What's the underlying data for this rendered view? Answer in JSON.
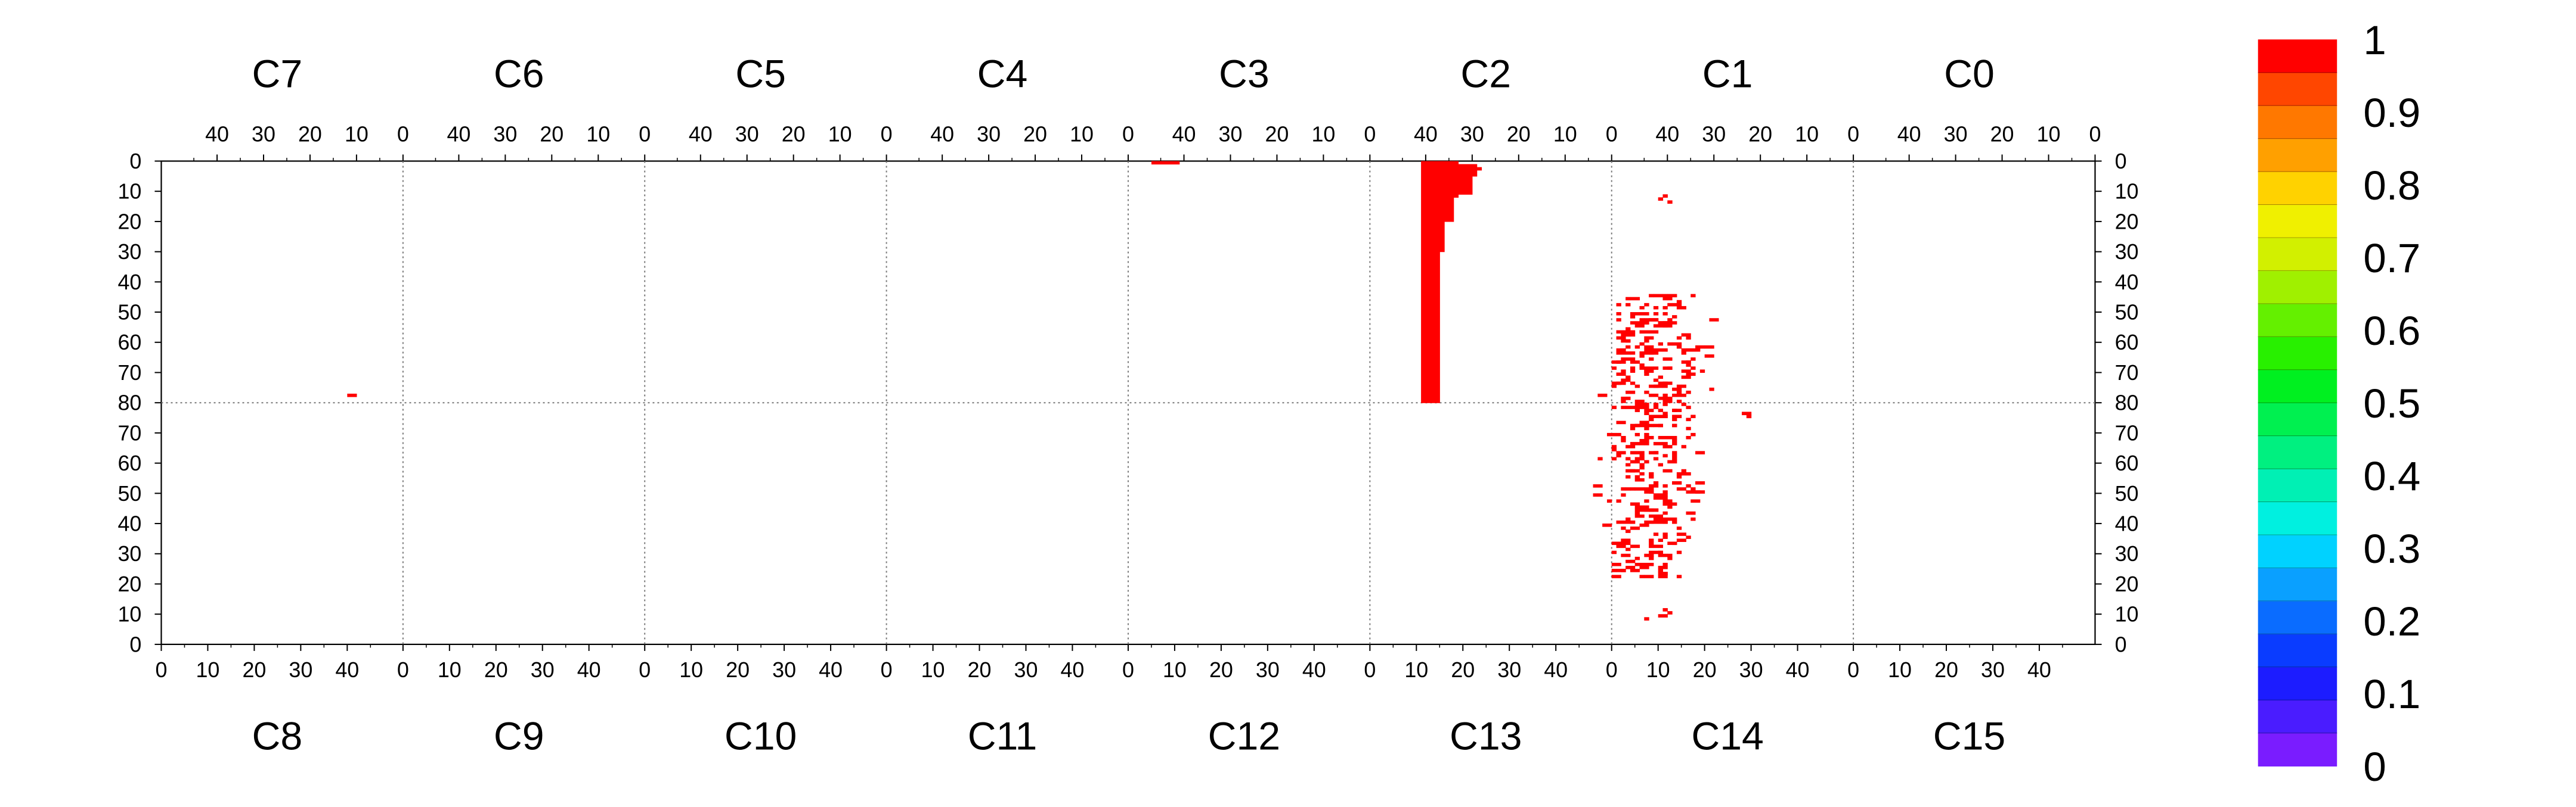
{
  "chart_data": {
    "type": "heatmap",
    "top_chips": [
      "C7",
      "C6",
      "C5",
      "C4",
      "C3",
      "C2",
      "C1",
      "C0"
    ],
    "bottom_chips": [
      "C8",
      "C9",
      "C10",
      "C11",
      "C12",
      "C13",
      "C14",
      "C15"
    ],
    "top_tick_labels": [
      "40",
      "30",
      "20",
      "10",
      "0"
    ],
    "bottom_tick_labels": [
      "0",
      "10",
      "20",
      "30",
      "40"
    ],
    "left_tick_labels": [
      "0",
      "10",
      "20",
      "30",
      "40",
      "50",
      "60",
      "70",
      "80",
      "70",
      "60",
      "50",
      "40",
      "30",
      "20",
      "10",
      "0"
    ],
    "right_tick_labels": [
      "0",
      "10",
      "20",
      "30",
      "40",
      "50",
      "60",
      "70",
      "80",
      "70",
      "60",
      "50",
      "40",
      "30",
      "20",
      "10",
      "0"
    ],
    "colorbar": {
      "range": [
        0,
        1
      ],
      "tick_labels": [
        "0",
        "0.1",
        "0.2",
        "0.3",
        "0.4",
        "0.5",
        "0.6",
        "0.7",
        "0.8",
        "0.9",
        "1"
      ],
      "colors": [
        "#7a1cff",
        "#4a1cff",
        "#1c1cff",
        "#0a3cff",
        "#0a6cff",
        "#0aa0ff",
        "#00d2ff",
        "#00f0e0",
        "#00f0b4",
        "#00f080",
        "#00f050",
        "#00f020",
        "#28f000",
        "#64f000",
        "#a0f000",
        "#d2f000",
        "#f0f000",
        "#ffd200",
        "#ffa000",
        "#ff7800",
        "#ff4600",
        "#ff0000"
      ]
    },
    "hit_value": 1,
    "hits": [
      {
        "col": 213,
        "row": 0,
        "w": 6,
        "h": 1
      },
      {
        "col": 271,
        "row": 0,
        "w": 3,
        "h": 80
      },
      {
        "col": 274,
        "row": 0,
        "w": 5,
        "h": 12
      },
      {
        "col": 279,
        "row": 1,
        "w": 4,
        "h": 4
      },
      {
        "col": 279,
        "row": 5,
        "w": 3,
        "h": 6
      },
      {
        "col": 283,
        "row": 2,
        "w": 1,
        "h": 1
      },
      {
        "col": 274,
        "row": 12,
        "w": 4,
        "h": 8
      },
      {
        "col": 274,
        "row": 20,
        "w": 2,
        "h": 10
      },
      {
        "col": 274,
        "row": 30,
        "w": 1,
        "h": 50
      },
      {
        "col": 40,
        "row": 77,
        "w": 2,
        "h": 1
      },
      {
        "col": 323,
        "row": 11,
        "w": 1,
        "h": 1
      },
      {
        "col": 324,
        "row": 13,
        "w": 1,
        "h": 1
      },
      {
        "col": 322,
        "row": 12,
        "w": 1,
        "h": 1
      },
      {
        "col": 323,
        "row": 148,
        "w": 1,
        "h": 1
      },
      {
        "col": 324,
        "row": 149,
        "w": 1,
        "h": 1
      },
      {
        "col": 322,
        "row": 150,
        "w": 2,
        "h": 1
      },
      {
        "col": 319,
        "row": 151,
        "w": 1,
        "h": 1
      },
      {
        "col": 340,
        "row": 83,
        "w": 2,
        "h": 1
      },
      {
        "col": 341,
        "row": 84,
        "w": 1,
        "h": 1
      }
    ],
    "clusters": [
      {
        "col_min": 312,
        "col_max": 329,
        "row_min": 44,
        "row_max": 137,
        "density": 0.22,
        "seed": 7
      },
      {
        "col_min": 308,
        "col_max": 334,
        "row_min": 50,
        "row_max": 131,
        "density": 0.05,
        "seed": 19
      }
    ]
  }
}
